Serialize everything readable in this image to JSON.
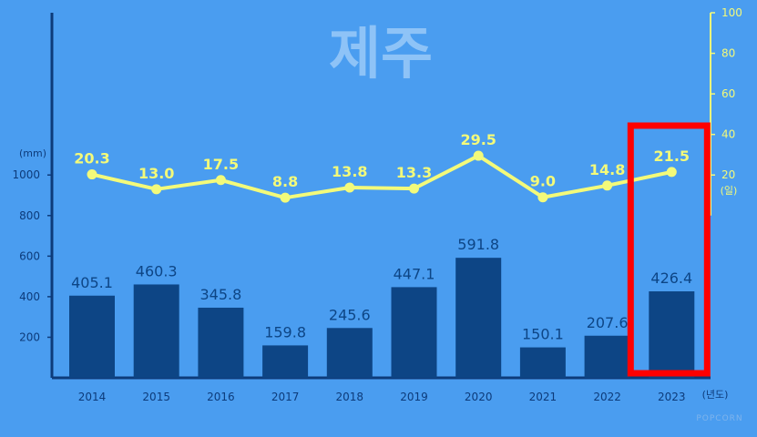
{
  "title": "제주",
  "watermark": "POPCORN",
  "colors": {
    "background": "#4a9df0",
    "bar": "#0d4585",
    "line": "#f3fa7a",
    "axis": "#0d3b7a",
    "highlight": "#ff0000",
    "title": "#8ec3f7"
  },
  "chart_data": {
    "type": "bar+line",
    "title": "제주",
    "categories": [
      "2014",
      "2015",
      "2016",
      "2017",
      "2018",
      "2019",
      "2020",
      "2021",
      "2022",
      "2023"
    ],
    "series": [
      {
        "type": "bar",
        "axis": "left",
        "values": [
          405.1,
          460.3,
          345.8,
          159.8,
          245.6,
          447.1,
          591.8,
          150.1,
          207.6,
          426.4
        ],
        "labels": [
          "405.1",
          "460.3",
          "345.8",
          "159.8",
          "245.6",
          "447.1",
          "591.8",
          "150.1",
          "207.6",
          "426.4"
        ]
      },
      {
        "type": "line",
        "axis": "right",
        "values": [
          20.3,
          13.0,
          17.5,
          8.8,
          13.8,
          13.3,
          29.5,
          9.0,
          14.8,
          21.5
        ],
        "labels": [
          "20.3",
          "13.0",
          "17.5",
          "8.8",
          "13.8",
          "13.3",
          "29.5",
          "9.0",
          "14.8",
          "21.5"
        ]
      }
    ],
    "y_left": {
      "unit_label": "(mm)",
      "ticks": [
        "200",
        "400",
        "600",
        "800",
        "1000"
      ],
      "ylim": [
        0,
        1800
      ]
    },
    "y_right": {
      "unit_label": "(일)",
      "ticks": [
        "20",
        "40",
        "60",
        "80",
        "100"
      ],
      "ylim": [
        -80,
        100
      ]
    },
    "x_unit_label": "(년도)",
    "highlight_category": "2023",
    "grid": false
  }
}
